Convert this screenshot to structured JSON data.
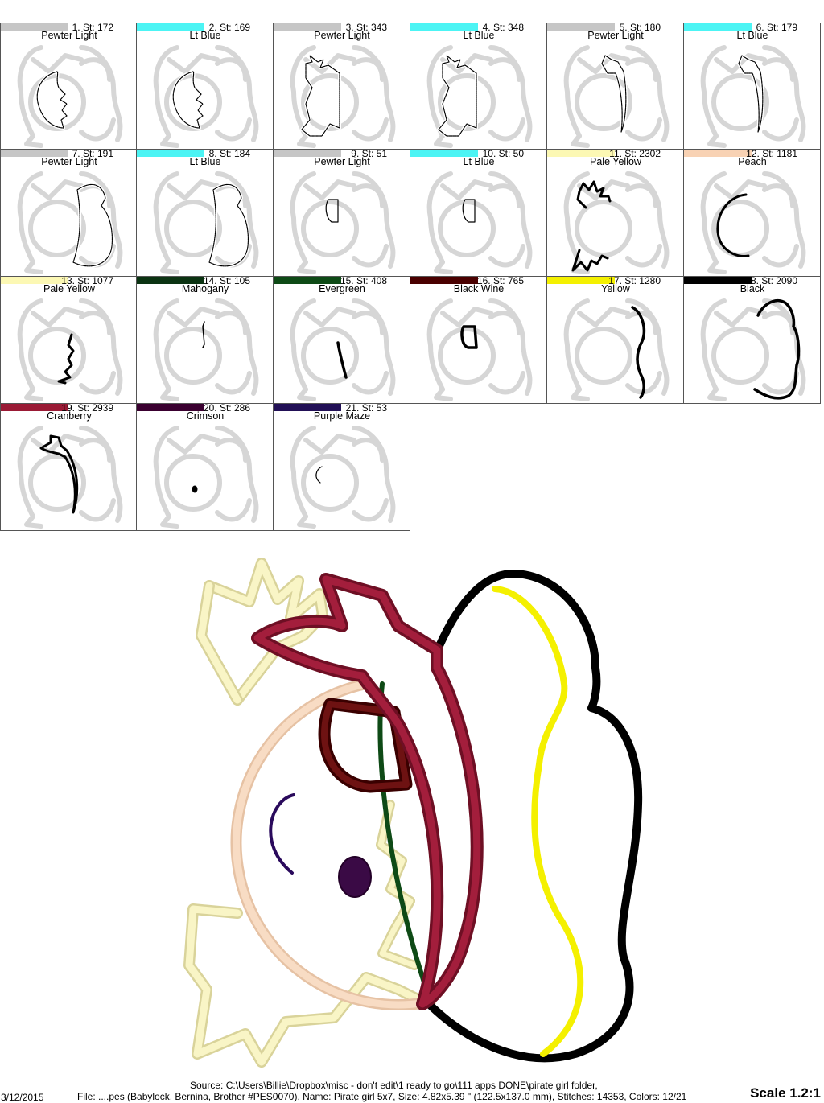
{
  "colors": [
    {
      "num": 1,
      "stitches": 172,
      "name": "Pewter Light",
      "hex": "#c6c6c6",
      "thumb": "hair-left"
    },
    {
      "num": 2,
      "stitches": 169,
      "name": "Lt Blue",
      "hex": "#4cf4f4",
      "thumb": "hair-left"
    },
    {
      "num": 3,
      "stitches": 343,
      "name": "Pewter Light",
      "hex": "#c6c6c6",
      "thumb": "hair-full"
    },
    {
      "num": 4,
      "stitches": 348,
      "name": "Lt Blue",
      "hex": "#4cf4f4",
      "thumb": "hair-full"
    },
    {
      "num": 5,
      "stitches": 180,
      "name": "Pewter Light",
      "hex": "#c6c6c6",
      "thumb": "bandana"
    },
    {
      "num": 6,
      "stitches": 179,
      "name": "Lt Blue",
      "hex": "#4cf4f4",
      "thumb": "bandana"
    },
    {
      "num": 7,
      "stitches": 191,
      "name": "Pewter Light",
      "hex": "#c6c6c6",
      "thumb": "hat"
    },
    {
      "num": 8,
      "stitches": 184,
      "name": "Lt Blue",
      "hex": "#4cf4f4",
      "thumb": "hat"
    },
    {
      "num": 9,
      "stitches": 51,
      "name": "Pewter Light",
      "hex": "#c6c6c6",
      "thumb": "patch"
    },
    {
      "num": 10,
      "stitches": 50,
      "name": "Lt Blue",
      "hex": "#4cf4f4",
      "thumb": "patch"
    },
    {
      "num": 11,
      "stitches": 2302,
      "name": "Pale Yellow",
      "hex": "#fcf8b4",
      "thumb": "pale-hair"
    },
    {
      "num": 12,
      "stitches": 1181,
      "name": "Peach",
      "hex": "#f8d2b4",
      "thumb": "peach"
    },
    {
      "num": 13,
      "stitches": 1077,
      "name": "Pale Yellow",
      "hex": "#fcf8b4",
      "thumb": "pale-fringe"
    },
    {
      "num": 14,
      "stitches": 105,
      "name": "Mahogany",
      "hex": "#0b3312",
      "thumb": "mahogany"
    },
    {
      "num": 15,
      "stitches": 408,
      "name": "Evergreen",
      "hex": "#0e4a16",
      "thumb": "evergreen"
    },
    {
      "num": 16,
      "stitches": 765,
      "name": "Black Wine",
      "hex": "#4a0000",
      "thumb": "blackwine"
    },
    {
      "num": 17,
      "stitches": 1280,
      "name": "Yellow",
      "hex": "#f4f000",
      "thumb": "yellow"
    },
    {
      "num": 18,
      "stitches": 2090,
      "name": "Black",
      "hex": "#000000",
      "thumb": "black"
    },
    {
      "num": 19,
      "stitches": 2939,
      "name": "Cranberry",
      "hex": "#9a1a35",
      "thumb": "cranberry"
    },
    {
      "num": 20,
      "stitches": 286,
      "name": "Crimson",
      "hex": "#3a0030",
      "thumb": "crimson"
    },
    {
      "num": 21,
      "stitches": 53,
      "name": "Purple Maze",
      "hex": "#221056",
      "thumb": "purple"
    }
  ],
  "footer": {
    "date": "3/12/2015",
    "source_line": "Source: C:\\Users\\Billie\\Dropbox\\misc - don't edit\\1 ready to go\\111 apps DONE\\pirate girl folder,",
    "file_line": "File: ....pes (Babylock, Bernina, Brother #PES0070), Name: Pirate girl 5x7, Size: 4.82x5.39 \" (122.5x137.0 mm), Stitches: 14353, Colors: 12/21",
    "scale": "Scale 1.2:1"
  }
}
